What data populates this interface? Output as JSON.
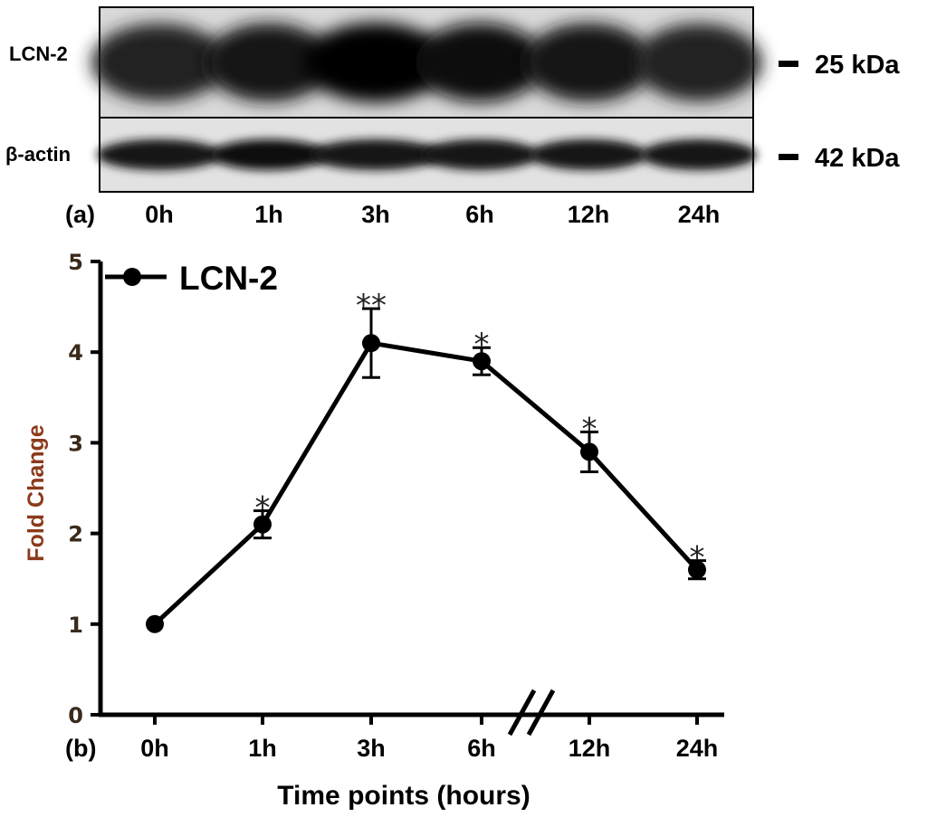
{
  "panel_a": {
    "label": "(a)",
    "rows": [
      {
        "label": "LCN-2",
        "marker": "25 kDa",
        "intensity": [
          0.82,
          0.9,
          1.0,
          0.93,
          0.9,
          0.82
        ]
      },
      {
        "label": "β-actin",
        "marker": "42 kDa",
        "intensity": [
          0.88,
          0.9,
          0.88,
          0.86,
          0.88,
          0.84
        ]
      }
    ],
    "lanes": [
      "0h",
      "1h",
      "3h",
      "6h",
      "12h",
      "24h"
    ]
  },
  "panel_b": {
    "label": "(b)"
  },
  "chart_data": {
    "type": "line",
    "categories": [
      "0h",
      "1h",
      "3h",
      "6h",
      "12h",
      "24h"
    ],
    "series": [
      {
        "name": "LCN-2",
        "values": [
          1.0,
          2.1,
          4.1,
          3.9,
          2.9,
          1.6
        ],
        "errors": [
          0.0,
          0.15,
          0.38,
          0.15,
          0.22,
          0.1
        ],
        "significance": [
          "",
          "*",
          "**",
          "*",
          "*",
          "*"
        ]
      }
    ],
    "xlabel": "Time points (hours)",
    "ylabel": "Fold Change",
    "yticks": [
      "0",
      "1",
      "2",
      "3",
      "4",
      "5"
    ],
    "ylim": [
      0,
      5
    ],
    "axis_break_between": [
      "6h",
      "12h"
    ],
    "legend_position": "top-left",
    "colors": {
      "line": "#000000",
      "ylabel": "#8b3a1a",
      "ticks": "#3a2a1a"
    }
  }
}
